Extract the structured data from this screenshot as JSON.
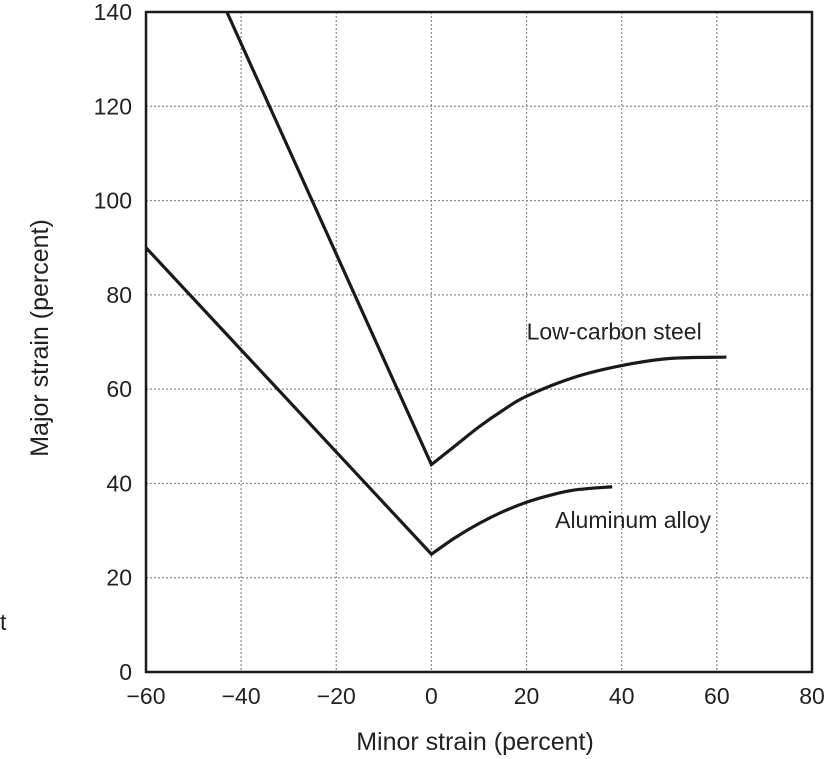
{
  "chart_data": {
    "type": "line",
    "title": "",
    "xlabel": "Minor strain (percent)",
    "ylabel": "Major strain (percent)",
    "xlim": [
      -60,
      80
    ],
    "ylim": [
      0,
      140
    ],
    "x_ticks": [
      -60,
      -40,
      -20,
      0,
      20,
      40,
      60,
      80
    ],
    "x_tick_labels": [
      "−60",
      "−40",
      "−20",
      "0",
      "20",
      "40",
      "60",
      "80"
    ],
    "y_ticks": [
      0,
      20,
      40,
      60,
      80,
      100,
      120,
      140
    ],
    "y_tick_labels": [
      "0",
      "20",
      "40",
      "60",
      "80",
      "100",
      "120",
      "140"
    ],
    "grid": true,
    "series": [
      {
        "name": "Low-carbon steel",
        "color": "#1a1a1a",
        "points": [
          {
            "x": -43,
            "y": 140
          },
          {
            "x": 0,
            "y": 44
          },
          {
            "x": 5,
            "y": 48
          },
          {
            "x": 10,
            "y": 52
          },
          {
            "x": 15,
            "y": 55.5
          },
          {
            "x": 20,
            "y": 58.5
          },
          {
            "x": 30,
            "y": 62.5
          },
          {
            "x": 40,
            "y": 65
          },
          {
            "x": 50,
            "y": 66.5
          },
          {
            "x": 62,
            "y": 66.8
          }
        ]
      },
      {
        "name": "Aluminum alloy",
        "color": "#1a1a1a",
        "points": [
          {
            "x": -60,
            "y": 90
          },
          {
            "x": 0,
            "y": 25
          },
          {
            "x": 5,
            "y": 28.5
          },
          {
            "x": 10,
            "y": 31.5
          },
          {
            "x": 15,
            "y": 34
          },
          {
            "x": 20,
            "y": 36
          },
          {
            "x": 25,
            "y": 37.5
          },
          {
            "x": 30,
            "y": 38.6
          },
          {
            "x": 38,
            "y": 39.3
          }
        ]
      }
    ],
    "stray_text": "t"
  }
}
